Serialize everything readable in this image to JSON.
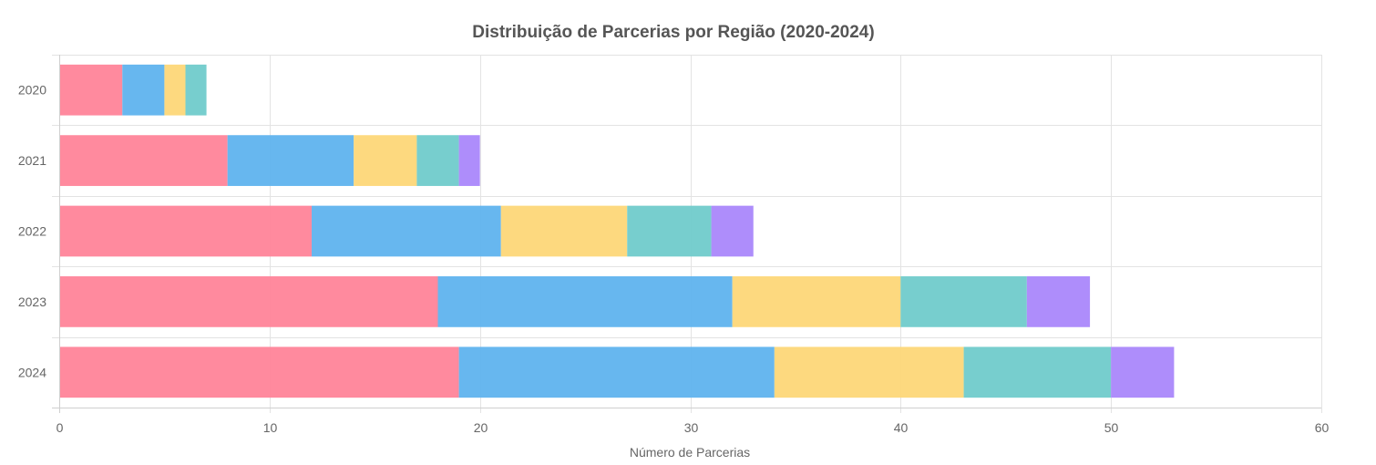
{
  "chart_data": {
    "type": "bar",
    "orientation": "horizontal",
    "stacked": true,
    "title": "Distribuição de Parcerias por Região (2020-2024)",
    "xlabel": "Número de Parcerias",
    "ylabel": "",
    "xlim": [
      0,
      60
    ],
    "x_ticks": [
      "0",
      "10",
      "20",
      "30",
      "40",
      "50",
      "60"
    ],
    "categories": [
      "2020",
      "2021",
      "2022",
      "2023",
      "2024"
    ],
    "grid": true,
    "legend": "none",
    "series": [
      {
        "color": "#ff8499",
        "values": [
          3,
          8,
          12,
          18,
          19
        ]
      },
      {
        "color": "#5fb3ee",
        "values": [
          2,
          6,
          9,
          14,
          15
        ]
      },
      {
        "color": "#fdd778",
        "values": [
          1,
          3,
          6,
          8,
          9
        ]
      },
      {
        "color": "#70cbcb",
        "values": [
          1,
          2,
          4,
          6,
          7
        ]
      },
      {
        "color": "#aa87fb",
        "values": [
          0,
          1,
          2,
          3,
          3
        ]
      }
    ]
  }
}
